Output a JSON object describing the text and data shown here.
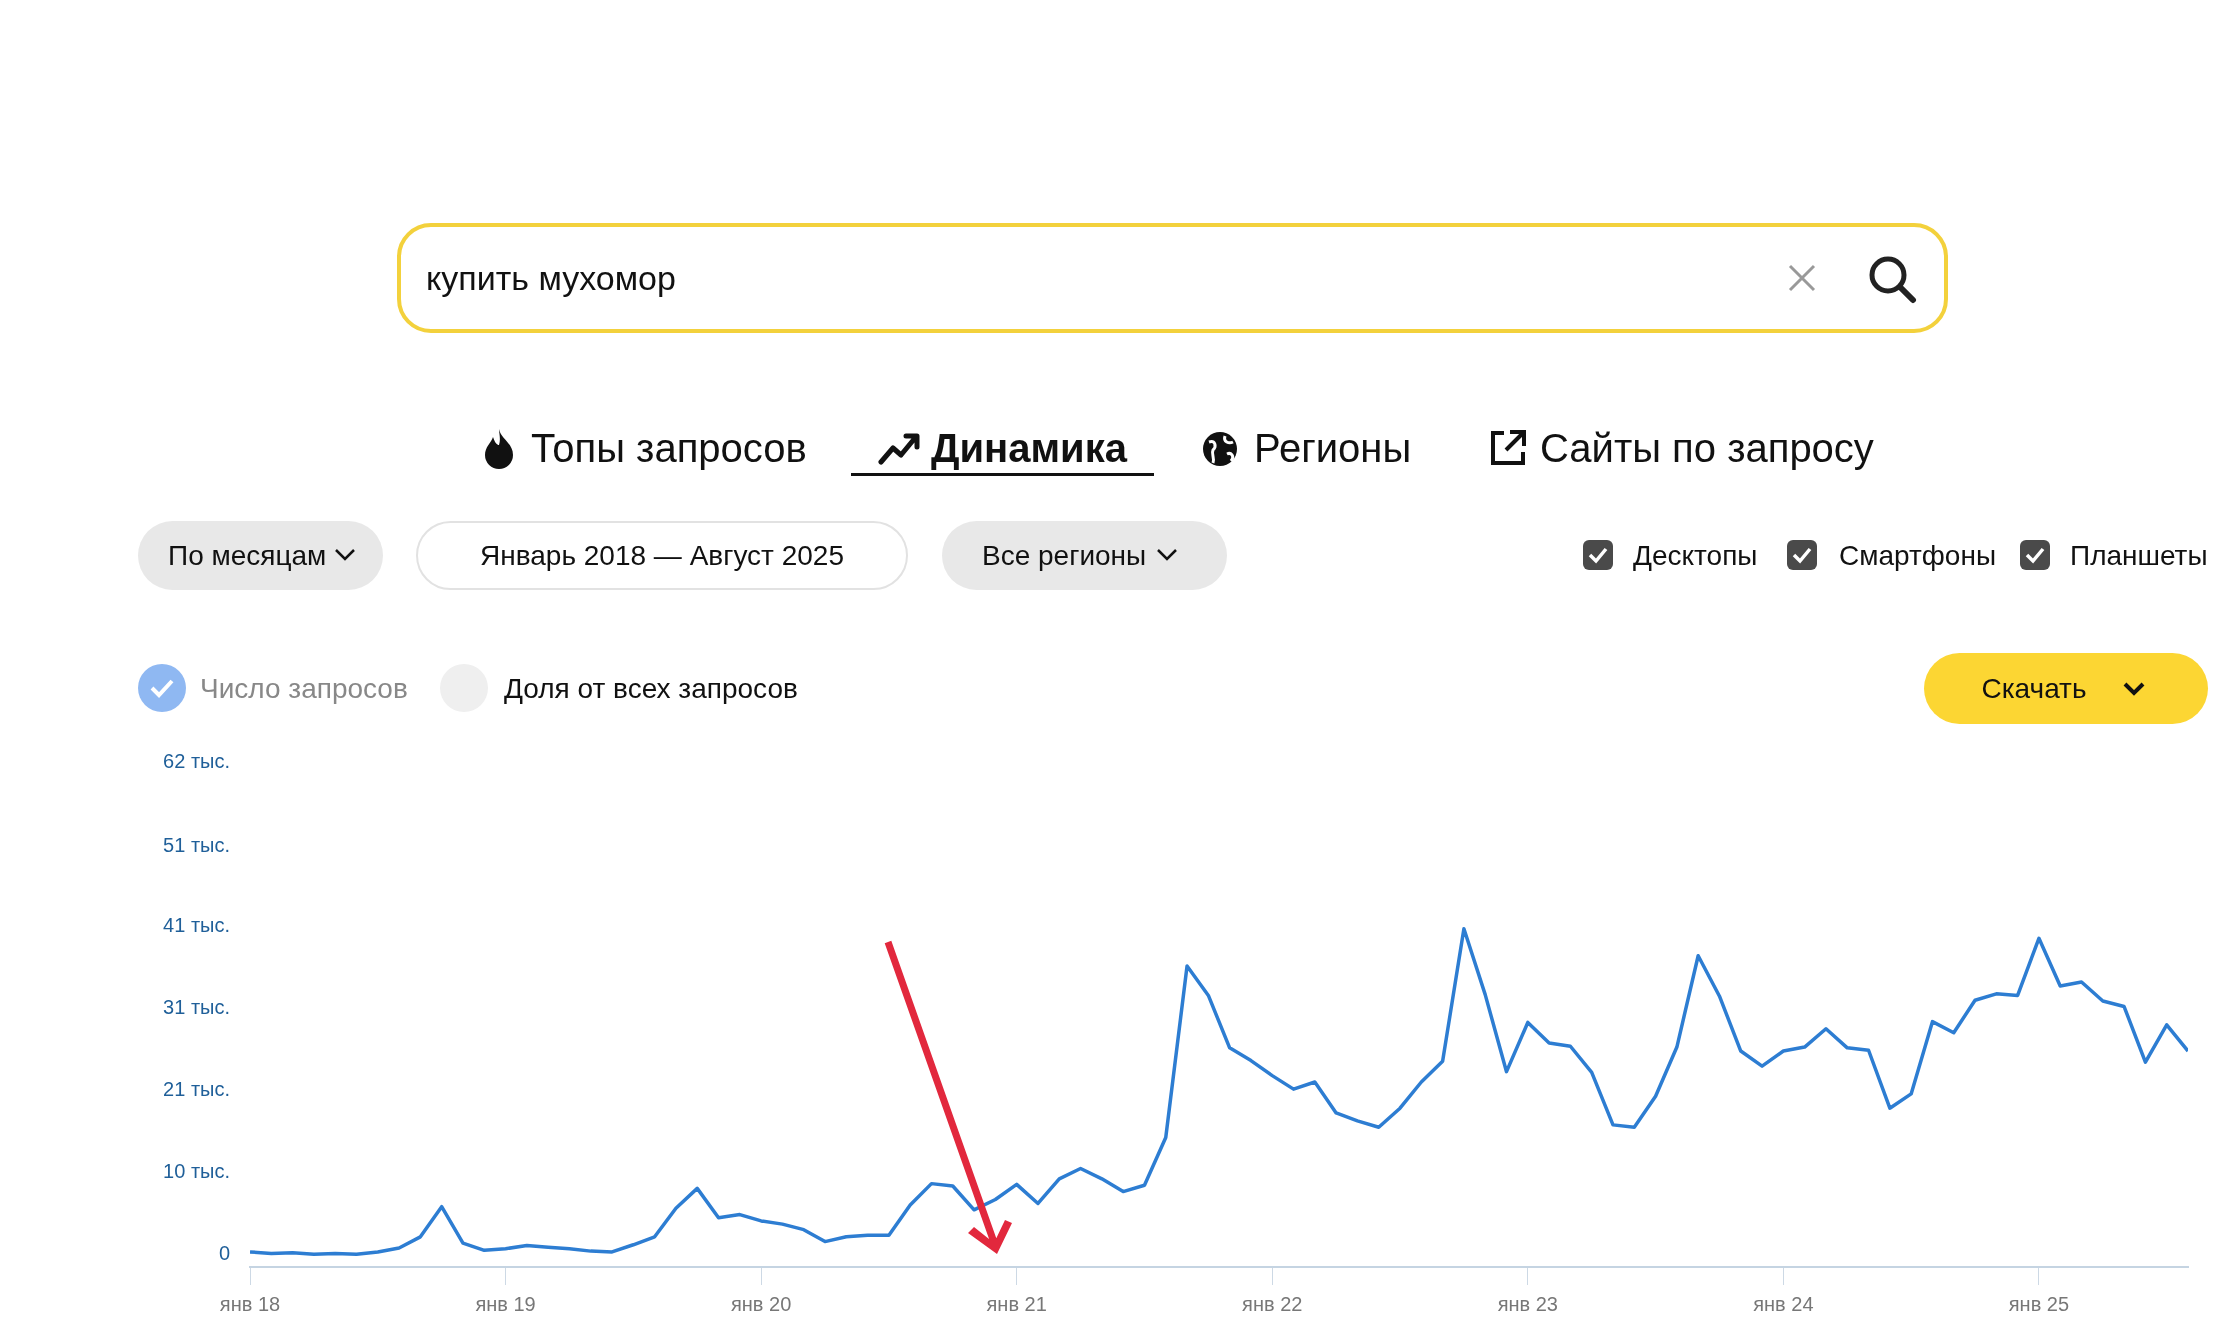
{
  "chart_data": {
    "type": "line",
    "title": "купить мухомор",
    "annotations": [
      "Топы запросов",
      "Динамика",
      "Регионы",
      "Сайты по запросу",
      "По месяцам",
      "Январь 2018 — Август 2025",
      "Все регионы",
      "Десктопы",
      "Смартфоны",
      "Планшеты",
      "Число запросов",
      "Доля от всех запросов",
      "Скачать"
    ],
    "x": [
      "2018-01",
      "2018-02",
      "2018-03",
      "2018-04",
      "2018-05",
      "2018-06",
      "2018-07",
      "2018-08",
      "2018-09",
      "2018-10",
      "2018-11",
      "2018-12",
      "2019-01",
      "2019-02",
      "2019-03",
      "2019-04",
      "2019-05",
      "2019-06",
      "2019-07",
      "2019-08",
      "2019-09",
      "2019-10",
      "2019-11",
      "2019-12",
      "2020-01",
      "2020-02",
      "2020-03",
      "2020-04",
      "2020-05",
      "2020-06",
      "2020-07",
      "2020-08",
      "2020-09",
      "2020-10",
      "2020-11",
      "2020-12",
      "2021-01",
      "2021-02",
      "2021-03",
      "2021-04",
      "2021-05",
      "2021-06",
      "2021-07",
      "2021-08",
      "2021-09",
      "2021-10",
      "2021-11",
      "2021-12",
      "2022-01",
      "2022-02",
      "2022-03",
      "2022-04",
      "2022-05",
      "2022-06",
      "2022-07",
      "2022-08",
      "2022-09",
      "2022-10",
      "2022-11",
      "2022-12",
      "2023-01",
      "2023-02",
      "2023-03",
      "2023-04",
      "2023-05",
      "2023-06",
      "2023-07",
      "2023-08",
      "2023-09",
      "2023-10",
      "2023-11",
      "2023-12",
      "2024-01",
      "2024-02",
      "2024-03",
      "2024-04",
      "2024-05",
      "2024-06",
      "2024-07",
      "2024-08",
      "2024-09",
      "2024-10",
      "2024-11",
      "2024-12",
      "2025-01",
      "2025-02",
      "2025-03",
      "2025-04",
      "2025-05",
      "2025-06",
      "2025-07",
      "2025-08"
    ],
    "values": [
      0.3,
      0.1,
      0.2,
      0,
      0.1,
      0,
      0.3,
      0.8,
      2.2,
      6.0,
      1.4,
      0.5,
      0.7,
      1.1,
      0.9,
      0.7,
      0.4,
      0.3,
      1.2,
      2.2,
      5.8,
      8.3,
      4.6,
      5.0,
      4.2,
      3.8,
      3.1,
      1.6,
      2.2,
      2.4,
      2.4,
      6.2,
      8.9,
      8.6,
      5.6,
      6.9,
      8.8,
      6.4,
      9.5,
      10.8,
      9.5,
      7.9,
      8.7,
      14.7,
      36.3,
      32.6,
      26.0,
      24.4,
      22.5,
      20.8,
      21.7,
      17.8,
      16.8,
      16.0,
      18.4,
      21.7,
      24.3,
      41.0,
      32.7,
      23.0,
      29.2,
      26.6,
      26.2,
      22.9,
      16.3,
      16.0,
      19.9,
      26.1,
      37.6,
      32.5,
      25.6,
      23.7,
      25.6,
      26.1,
      28.4,
      26.0,
      25.7,
      18.4,
      20.2,
      29.3,
      27.9,
      32.0,
      32.8,
      32.6,
      39.8,
      33.8,
      34.3,
      31.9,
      31.2,
      24.2,
      28.9,
      25.6
    ],
    "color": "#2d7dd2",
    "xlim": [
      "2018-01",
      "2025-08"
    ],
    "xticks": [
      {
        "value": "2018-01",
        "label": "янв 18"
      },
      {
        "value": "2019-01",
        "label": "янв 19"
      },
      {
        "value": "2020-01",
        "label": "янв 20"
      },
      {
        "value": "2021-01",
        "label": "янв 21"
      },
      {
        "value": "2022-01",
        "label": "янв 22"
      },
      {
        "value": "2023-01",
        "label": "янв 23"
      },
      {
        "value": "2024-01",
        "label": "янв 24"
      },
      {
        "value": "2025-01",
        "label": "янв 25"
      }
    ],
    "ylim": [
      -1.6,
      62
    ],
    "yticks": [
      {
        "value": 0,
        "label": "0"
      },
      {
        "value": 10.33,
        "label": "10 тыс."
      },
      {
        "value": 20.67,
        "label": "21 тыс."
      },
      {
        "value": 31,
        "label": "31 тыс."
      },
      {
        "value": 41.33,
        "label": "41 тыс."
      },
      {
        "value": 51.4,
        "label": "51 тыс."
      },
      {
        "value": 62,
        "label": "62 тыс."
      }
    ],
    "marker": "none",
    "line_style": "solid",
    "legend": false
  }
}
